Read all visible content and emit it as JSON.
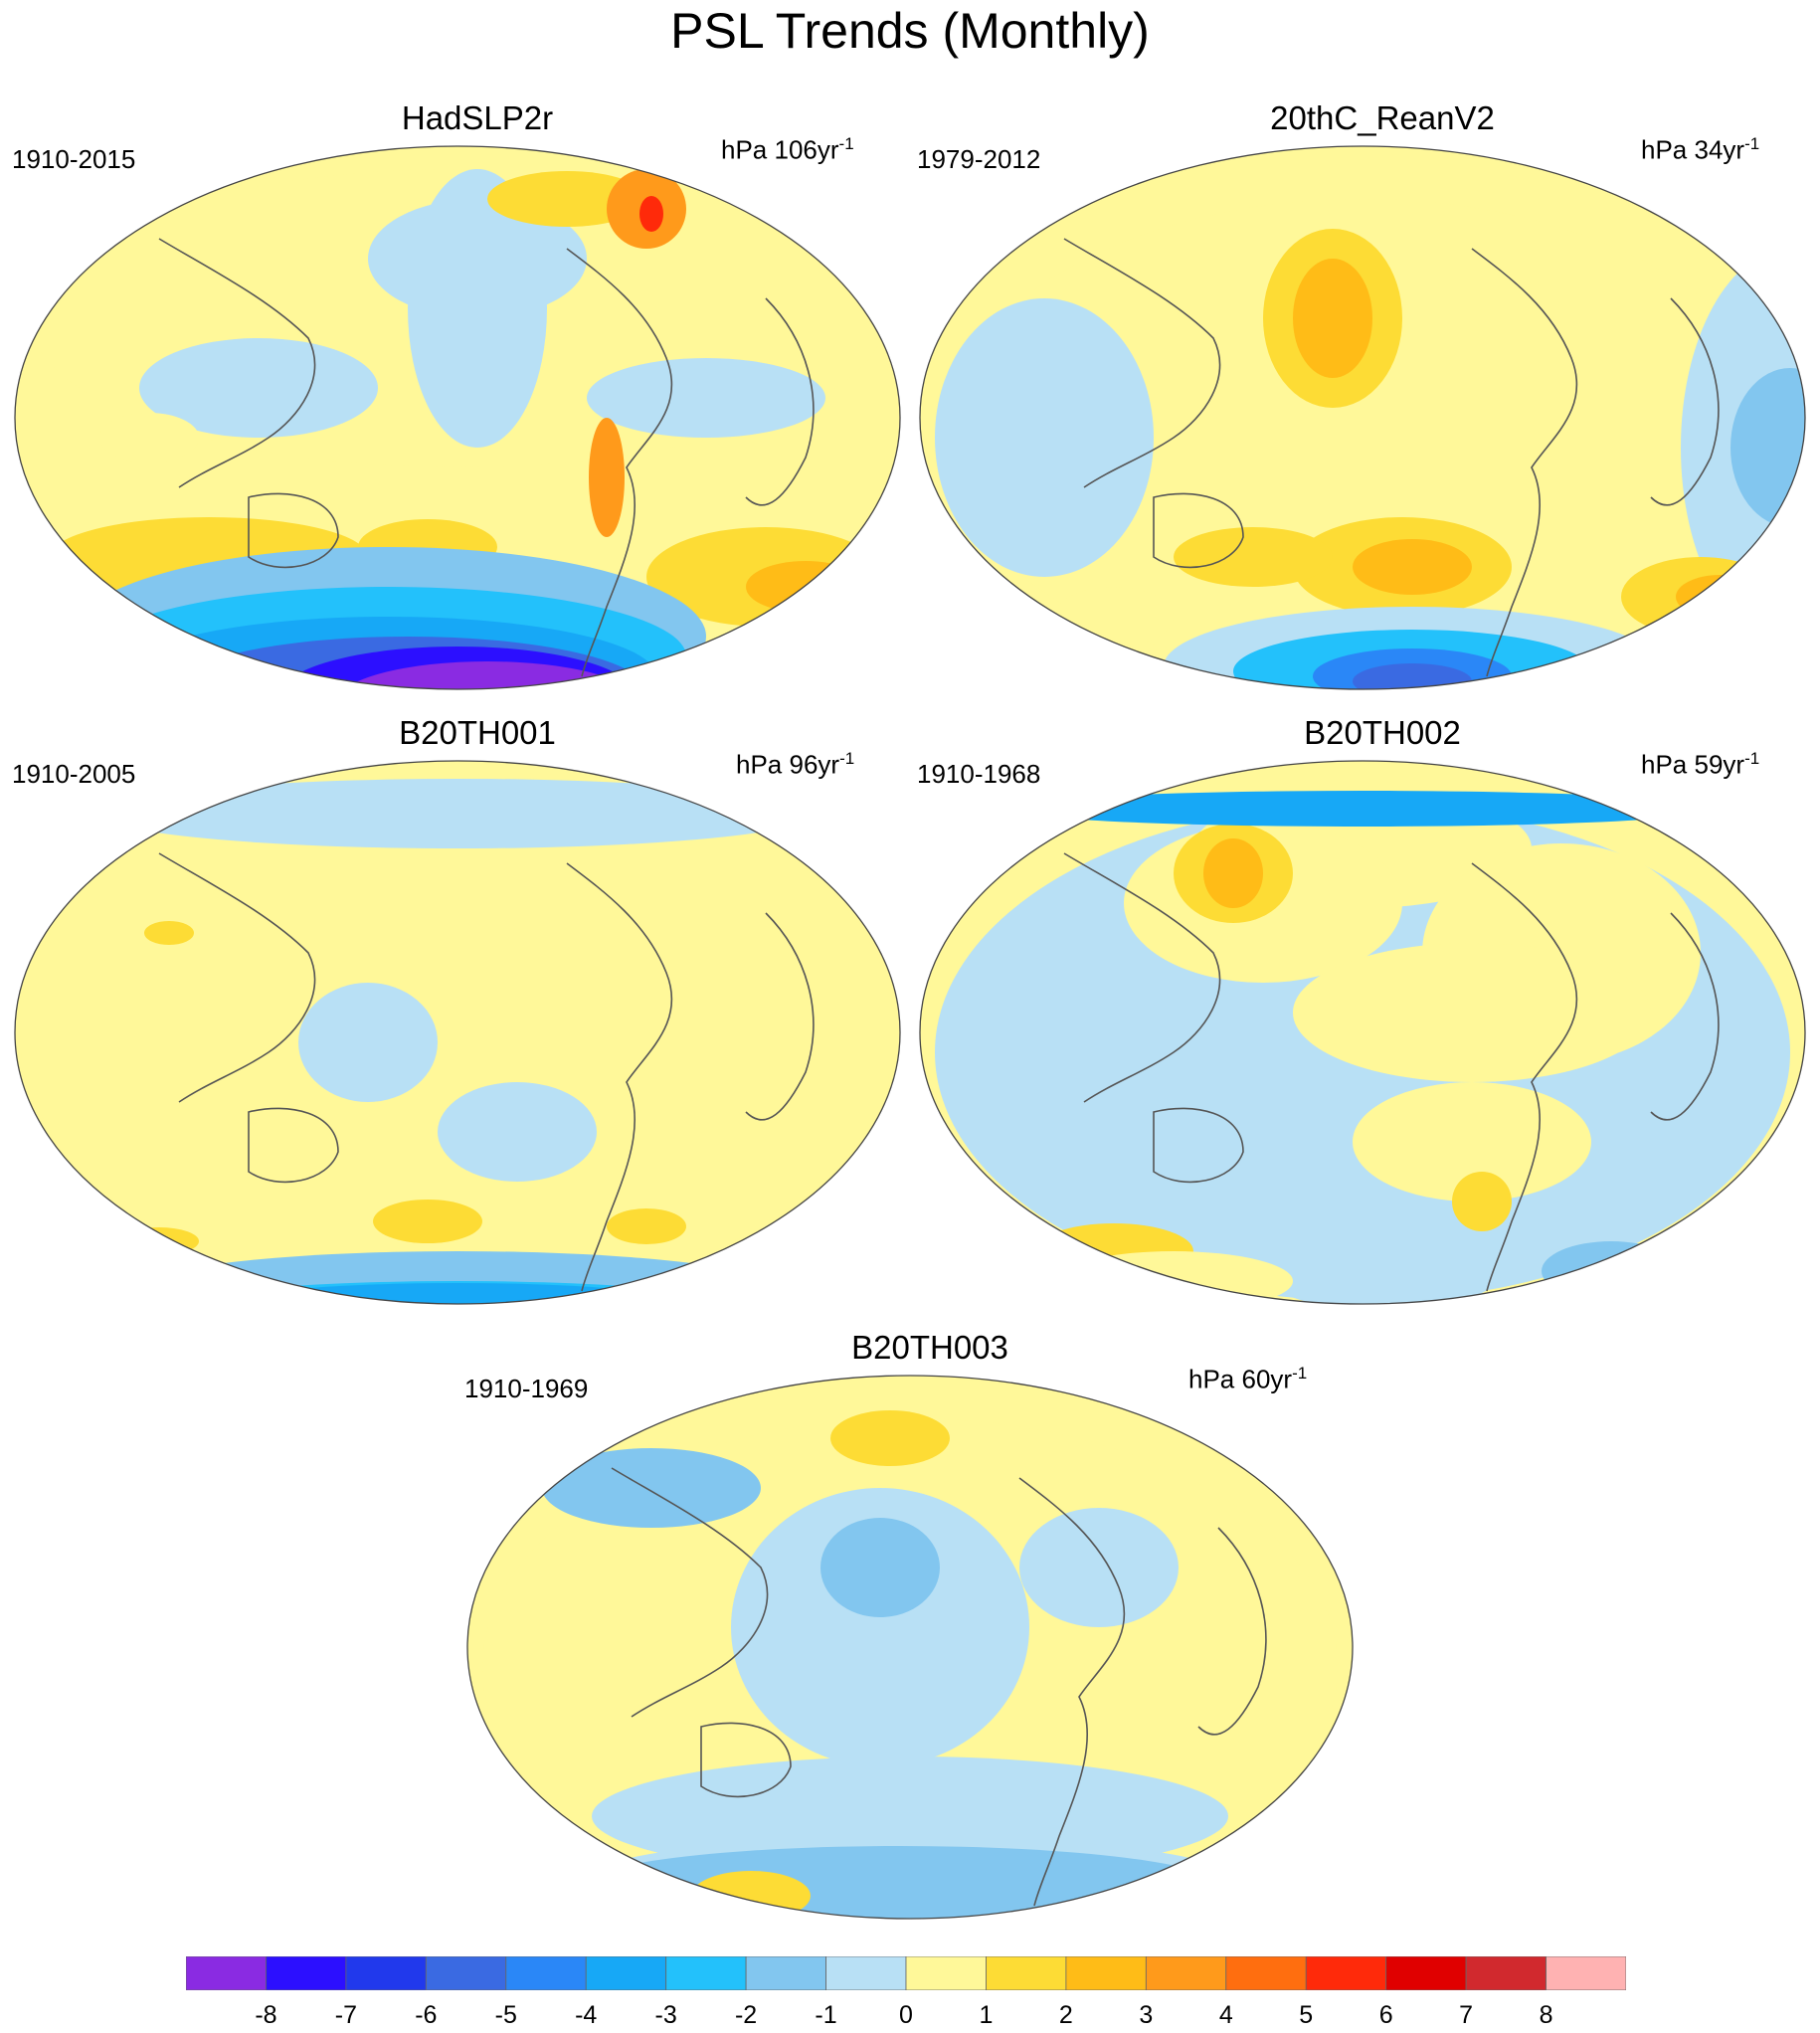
{
  "figure": {
    "title": "PSL Trends (Monthly)"
  },
  "panels": [
    {
      "title": "HadSLP2r",
      "period": "1910-2015",
      "units_prefix": "hPa 106yr",
      "units_exp": "-1"
    },
    {
      "title": "20thC_ReanV2",
      "period": "1979-2012",
      "units_prefix": "hPa 34yr",
      "units_exp": "-1"
    },
    {
      "title": "B20TH001",
      "period": "1910-2005",
      "units_prefix": "hPa 96yr",
      "units_exp": "-1"
    },
    {
      "title": "B20TH002",
      "period": "1910-1968",
      "units_prefix": "hPa 59yr",
      "units_exp": "-1"
    },
    {
      "title": "B20TH003",
      "period": "1910-1969",
      "units_prefix": "hPa 60yr",
      "units_exp": "-1"
    }
  ],
  "colorbar": {
    "labels": [
      "-8",
      "-7",
      "-6",
      "-5",
      "-4",
      "-3",
      "-2",
      "-1",
      "0",
      "1",
      "2",
      "3",
      "4",
      "5",
      "6",
      "7",
      "8"
    ],
    "colors": [
      "#8a2be2",
      "#2c0fff",
      "#2139ec",
      "#3a6ae2",
      "#2a87f7",
      "#17a8f6",
      "#23c1fb",
      "#82c6ef",
      "#b8e0f5",
      "#fff899",
      "#fddc35",
      "#ffbc17",
      "#ff9a1b",
      "#ff6e0f",
      "#ff2a0a",
      "#e00000",
      "#d1292e",
      "#ffb2b2"
    ]
  }
}
